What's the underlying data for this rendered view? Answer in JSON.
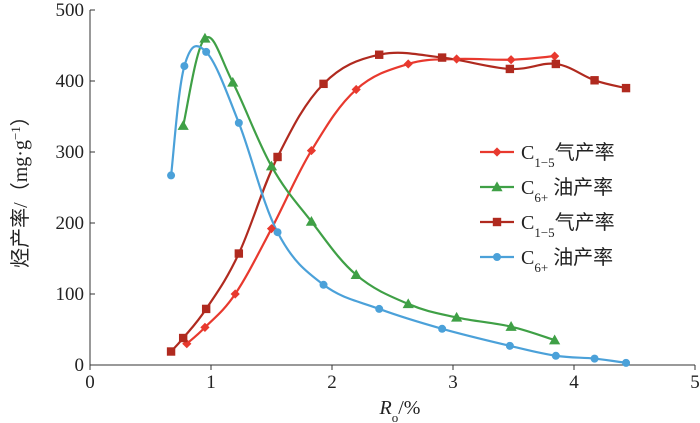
{
  "chart_data": {
    "type": "line",
    "xlabel_main": "R",
    "xlabel_sub": "o",
    "xlabel_unit": "/%",
    "ylabel_main": "烃产率/（mg·g",
    "ylabel_sup": "−1",
    "ylabel_end": "）",
    "xlim": [
      0,
      5
    ],
    "ylim": [
      0,
      500
    ],
    "x_ticks": [
      "0",
      "1",
      "2",
      "3",
      "4",
      "5"
    ],
    "y_ticks": [
      "0",
      "100",
      "200",
      "300",
      "400",
      "500"
    ],
    "grid": false,
    "legend_position": "right",
    "series": [
      {
        "name": "C1−5气产率",
        "label_main": "C",
        "label_sub": "1−5",
        "label_end": "气产率",
        "color": "#e8392e",
        "marker": "diamond",
        "points": [
          [
            0.8,
            30
          ],
          [
            0.95,
            53
          ],
          [
            1.2,
            100
          ],
          [
            1.5,
            192
          ],
          [
            1.83,
            302
          ],
          [
            2.2,
            388
          ],
          [
            2.63,
            424
          ],
          [
            3.03,
            431
          ],
          [
            3.48,
            430
          ],
          [
            3.84,
            435
          ]
        ]
      },
      {
        "name": "C6+ 油产率",
        "label_main": "C",
        "label_sub": "6+",
        "label_end": " 油产率",
        "color": "#3fa046",
        "marker": "triangle",
        "points": [
          [
            0.77,
            337
          ],
          [
            0.95,
            460
          ],
          [
            1.18,
            398
          ],
          [
            1.5,
            280
          ],
          [
            1.83,
            202
          ],
          [
            2.2,
            127
          ],
          [
            2.63,
            86
          ],
          [
            3.03,
            67
          ],
          [
            3.48,
            54
          ],
          [
            3.84,
            35
          ]
        ]
      },
      {
        "name": "C1−5气产率",
        "label_main": "C",
        "label_sub": "1−5",
        "label_end": "气产率",
        "color": "#b02a1f",
        "marker": "square",
        "points": [
          [
            0.67,
            19
          ],
          [
            0.77,
            38
          ],
          [
            0.96,
            79
          ],
          [
            1.23,
            157
          ],
          [
            1.55,
            293
          ],
          [
            1.93,
            396
          ],
          [
            2.39,
            437
          ],
          [
            2.91,
            433
          ],
          [
            3.47,
            417
          ],
          [
            3.85,
            424
          ],
          [
            4.17,
            401
          ],
          [
            4.43,
            390
          ]
        ]
      },
      {
        "name": "C6+ 油产率",
        "label_main": "C",
        "label_sub": "6+",
        "label_end": " 油产率",
        "color": "#4ba1d9",
        "marker": "circle",
        "points": [
          [
            0.67,
            267
          ],
          [
            0.78,
            421
          ],
          [
            0.96,
            441
          ],
          [
            1.23,
            341
          ],
          [
            1.55,
            187
          ],
          [
            1.93,
            113
          ],
          [
            2.39,
            79
          ],
          [
            2.91,
            51
          ],
          [
            3.47,
            27
          ],
          [
            3.85,
            13
          ],
          [
            4.17,
            9
          ],
          [
            4.43,
            3
          ]
        ]
      }
    ]
  }
}
